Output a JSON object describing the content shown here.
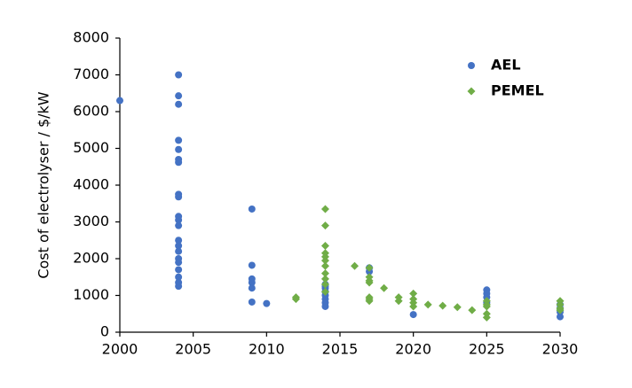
{
  "chart_data": {
    "type": "scatter",
    "y_label": "Cost of electrolyser / $/kW",
    "xlim": [
      2000,
      2030
    ],
    "xticks": [
      2000,
      2005,
      2010,
      2015,
      2020,
      2025,
      2030
    ],
    "ylim": [
      0,
      8000
    ],
    "yticks": [
      0,
      1000,
      2000,
      3000,
      4000,
      5000,
      6000,
      7000,
      8000
    ],
    "grid": false,
    "legend": "upper right",
    "series": [
      {
        "name": "AEL",
        "color": "#4472c4",
        "marker": "circle",
        "x": [
          2000,
          2004,
          2004,
          2004,
          2004,
          2004,
          2004,
          2004,
          2004,
          2004,
          2004,
          2004,
          2004,
          2004,
          2004,
          2004,
          2004,
          2004,
          2004,
          2004,
          2004,
          2004,
          2009,
          2009,
          2009,
          2009,
          2009,
          2009,
          2010,
          2014,
          2014,
          2014,
          2014,
          2014,
          2014,
          2014,
          2014,
          2017,
          2017,
          2020,
          2025,
          2025,
          2025,
          2025,
          2030,
          2030,
          2030,
          2030
        ],
        "values": [
          6300,
          7000,
          6430,
          6200,
          5220,
          4970,
          4700,
          4620,
          3750,
          3680,
          3150,
          3050,
          2900,
          2500,
          2350,
          2200,
          2000,
          1900,
          1700,
          1500,
          1350,
          1250,
          3350,
          1820,
          1450,
          1350,
          1200,
          820,
          780,
          1300,
          1250,
          1200,
          1100,
          1000,
          900,
          800,
          700,
          1750,
          1650,
          480,
          1150,
          1050,
          950,
          800,
          750,
          650,
          550,
          420
        ]
      },
      {
        "name": "PEMEL",
        "color": "#70ad47",
        "marker": "diamond",
        "x": [
          2012,
          2012,
          2014,
          2014,
          2014,
          2014,
          2014,
          2014,
          2014,
          2014,
          2014,
          2014,
          2014,
          2016,
          2017,
          2017,
          2017,
          2017,
          2017,
          2017,
          2017,
          2018,
          2019,
          2019,
          2020,
          2020,
          2020,
          2020,
          2021,
          2022,
          2023,
          2024,
          2025,
          2025,
          2025,
          2025,
          2025,
          2030,
          2030,
          2030,
          2030
        ],
        "values": [
          950,
          900,
          3350,
          2900,
          2350,
          2150,
          2050,
          1950,
          1800,
          1600,
          1450,
          1300,
          1100,
          1800,
          1750,
          1500,
          1400,
          1350,
          950,
          900,
          850,
          1200,
          950,
          850,
          1050,
          900,
          800,
          700,
          750,
          720,
          680,
          600,
          850,
          750,
          700,
          500,
          400,
          850,
          750,
          650,
          600
        ]
      }
    ]
  }
}
